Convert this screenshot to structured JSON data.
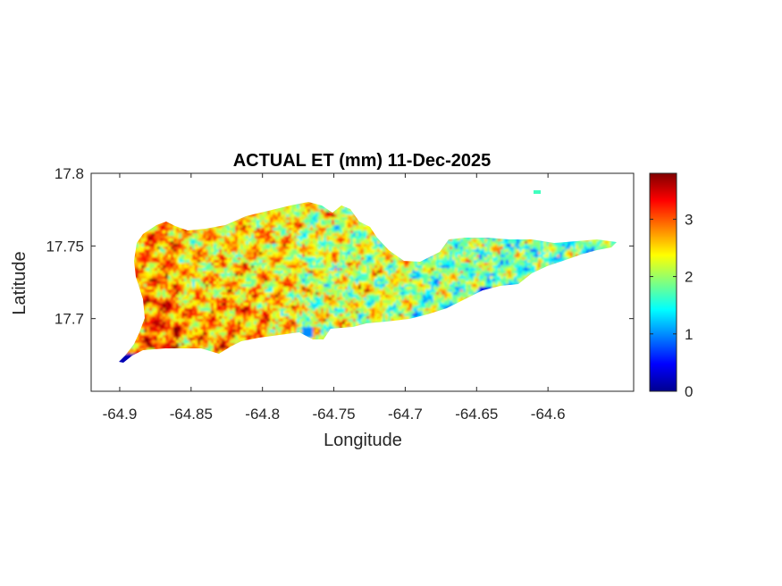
{
  "chart_data": {
    "type": "heatmap",
    "title": "ACTUAL ET (mm) 11-Dec-2025",
    "xlabel": "Longitude",
    "ylabel": "Latitude",
    "xlim": [
      -64.92,
      -64.54
    ],
    "ylim": [
      17.65,
      17.8
    ],
    "xticks": [
      -64.9,
      -64.85,
      -64.8,
      -64.75,
      -64.7,
      -64.65,
      -64.6
    ],
    "xtick_labels": [
      "-64.9",
      "-64.85",
      "-64.8",
      "-64.75",
      "-64.7",
      "-64.65",
      "-64.6"
    ],
    "yticks": [
      17.7,
      17.75,
      17.8
    ],
    "ytick_labels": [
      "17.7",
      "17.75",
      "17.8"
    ],
    "colorbar": {
      "colormap": "jet",
      "clim": [
        0,
        3.8
      ],
      "ticks": [
        0,
        1,
        2,
        3
      ],
      "tick_labels": [
        "0",
        "1",
        "2",
        "3"
      ]
    },
    "grid": false
  }
}
